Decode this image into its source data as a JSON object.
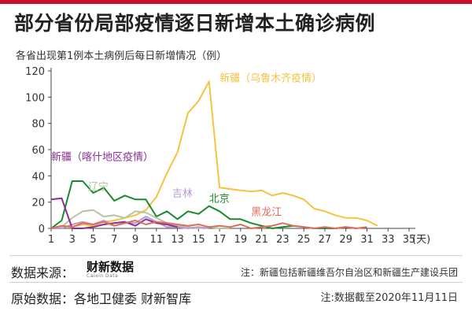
{
  "header": {
    "title": "部分省份局部疫情逐日新增本土确诊病例",
    "subtitle": "各省出现第1例本土病例后每日新增情况（例）"
  },
  "footer": {
    "source_label": "数据来源：",
    "logo_text": "财新数据",
    "logo_sub": "Caixin Data",
    "note": "注：新疆包括新疆维吾尔自治区和新疆生产建设兵团",
    "raw_data": "原始数据：各地卫健委 财新智库",
    "cutoff": "注:数据截至2020年11月11日"
  },
  "colors": {
    "accent": "#c8102e",
    "axis": "#444444",
    "grid": "#e5e5e5"
  },
  "chart_data": {
    "type": "line",
    "title": "部分省份局部疫情逐日新增本土确诊病例",
    "subtitle": "各省出现第1例本土病例后每日新增情况（例）",
    "xlabel": "(天)",
    "ylabel": "",
    "xlim": [
      1,
      35
    ],
    "ylim": [
      0,
      120
    ],
    "x_ticks": [
      1,
      3,
      5,
      7,
      9,
      11,
      13,
      15,
      17,
      19,
      21,
      23,
      25,
      27,
      29,
      31,
      33,
      35
    ],
    "y_ticks": [
      0,
      20,
      40,
      60,
      80,
      100,
      120
    ],
    "grid": false,
    "series": [
      {
        "name": "新疆（乌鲁木齐疫情）",
        "color": "#f5c242",
        "x": [
          1,
          2,
          3,
          4,
          5,
          6,
          7,
          8,
          9,
          10,
          11,
          12,
          13,
          14,
          15,
          16,
          17,
          18,
          19,
          20,
          21,
          22,
          23,
          24,
          25,
          26,
          27,
          28,
          29,
          30,
          31,
          32
        ],
        "y": [
          0,
          2,
          1,
          3,
          2,
          5,
          6,
          8,
          10,
          14,
          24,
          42,
          58,
          88,
          97,
          112,
          31,
          30,
          29,
          28,
          29,
          25,
          27,
          25,
          22,
          15,
          13,
          10,
          8,
          8,
          6,
          2
        ]
      },
      {
        "name": "北京",
        "color": "#1a8a2e",
        "x": [
          1,
          2,
          3,
          4,
          5,
          6,
          7,
          8,
          9,
          10,
          11,
          12,
          13,
          14,
          15,
          16,
          17,
          18,
          19,
          20,
          21,
          22,
          23,
          24,
          25,
          26,
          27,
          28,
          29,
          30
        ],
        "y": [
          0,
          6,
          36,
          36,
          27,
          31,
          21,
          25,
          22,
          22,
          9,
          13,
          7,
          13,
          11,
          17,
          13,
          7,
          7,
          4,
          2,
          0,
          1,
          2,
          1,
          0,
          0,
          0,
          1,
          0
        ]
      },
      {
        "name": "辽宁",
        "color": "#b6c4a4",
        "x": [
          1,
          2,
          3,
          4,
          5,
          6,
          7,
          8,
          9,
          10,
          11,
          12,
          13,
          14,
          15,
          16,
          17,
          18
        ],
        "y": [
          0,
          1,
          8,
          13,
          14,
          9,
          10,
          8,
          13,
          12,
          8,
          4,
          2,
          1,
          0,
          1,
          0,
          0
        ]
      },
      {
        "name": "吉林",
        "color": "#b89ad4",
        "x": [
          1,
          2,
          3,
          4,
          5,
          6,
          7,
          8,
          9,
          10,
          11,
          12,
          13,
          14,
          15,
          16
        ],
        "y": [
          0,
          0,
          3,
          5,
          3,
          6,
          2,
          4,
          4,
          9,
          5,
          1,
          1,
          0,
          1,
          0
        ]
      },
      {
        "name": "新疆（喀什地区疫情）",
        "color": "#8a2f95",
        "x": [
          1,
          2,
          3,
          4,
          5,
          6,
          7,
          8,
          9,
          10,
          11,
          12,
          13
        ],
        "y": [
          22,
          23,
          0,
          0,
          1,
          3,
          4,
          5,
          2,
          7,
          4,
          3,
          1
        ]
      },
      {
        "name": "黑龙江",
        "color": "#e06c5a",
        "x": [
          1,
          2,
          3,
          4,
          5,
          6,
          7,
          8,
          9,
          10,
          11,
          12,
          13,
          14,
          15,
          16,
          17,
          18,
          19,
          20,
          21,
          22,
          23,
          24,
          25,
          26,
          27,
          28,
          29,
          30,
          31
        ],
        "y": [
          0,
          2,
          1,
          4,
          3,
          5,
          2,
          4,
          6,
          3,
          5,
          4,
          3,
          2,
          3,
          1,
          2,
          1,
          3,
          0,
          1,
          2,
          4,
          2,
          1,
          0,
          1,
          0,
          1,
          0,
          1
        ]
      }
    ],
    "annotations": [
      {
        "text": "新疆（乌鲁木齐疫情）",
        "series": "新疆（乌鲁木齐疫情）",
        "x": 17,
        "y": 112
      },
      {
        "text": "新疆（喀什地区疫情）",
        "series": "新疆（喀什地区疫情）",
        "x": 1,
        "y": 52
      },
      {
        "text": "辽宁",
        "series": "辽宁",
        "x": 4.5,
        "y": 29
      },
      {
        "text": "吉林",
        "series": "吉林",
        "x": 12.5,
        "y": 24
      },
      {
        "text": "北京",
        "series": "北京",
        "x": 16,
        "y": 20
      },
      {
        "text": "黑龙江",
        "series": "黑龙江",
        "x": 20,
        "y": 10
      }
    ]
  }
}
